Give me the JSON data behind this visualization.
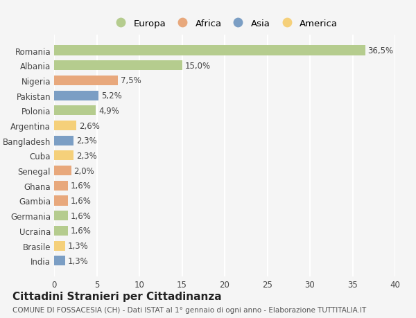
{
  "countries": [
    "Romania",
    "Albania",
    "Nigeria",
    "Pakistan",
    "Polonia",
    "Argentina",
    "Bangladesh",
    "Cuba",
    "Senegal",
    "Ghana",
    "Gambia",
    "Germania",
    "Ucraina",
    "Brasile",
    "India"
  ],
  "values": [
    36.5,
    15.0,
    7.5,
    5.2,
    4.9,
    2.6,
    2.3,
    2.3,
    2.0,
    1.6,
    1.6,
    1.6,
    1.6,
    1.3,
    1.3
  ],
  "labels": [
    "36,5%",
    "15,0%",
    "7,5%",
    "5,2%",
    "4,9%",
    "2,6%",
    "2,3%",
    "2,3%",
    "2,0%",
    "1,6%",
    "1,6%",
    "1,6%",
    "1,6%",
    "1,3%",
    "1,3%"
  ],
  "continents": [
    "Europa",
    "Europa",
    "Africa",
    "Asia",
    "Europa",
    "America",
    "Asia",
    "America",
    "Africa",
    "Africa",
    "Africa",
    "Europa",
    "Europa",
    "America",
    "Asia"
  ],
  "continent_colors": {
    "Europa": "#b5cc8e",
    "Africa": "#e8a87c",
    "Asia": "#7b9ec4",
    "America": "#f5d07a"
  },
  "legend_order": [
    "Europa",
    "Africa",
    "Asia",
    "America"
  ],
  "title": "Cittadini Stranieri per Cittadinanza",
  "subtitle": "COMUNE DI FOSSACESIA (CH) - Dati ISTAT al 1° gennaio di ogni anno - Elaborazione TUTTITALIA.IT",
  "xlim": [
    0,
    40
  ],
  "xticks": [
    0,
    5,
    10,
    15,
    20,
    25,
    30,
    35,
    40
  ],
  "background_color": "#f5f5f5",
  "grid_color": "#ffffff",
  "bar_height": 0.65,
  "label_fontsize": 8.5,
  "tick_fontsize": 8.5,
  "title_fontsize": 11,
  "subtitle_fontsize": 7.5
}
